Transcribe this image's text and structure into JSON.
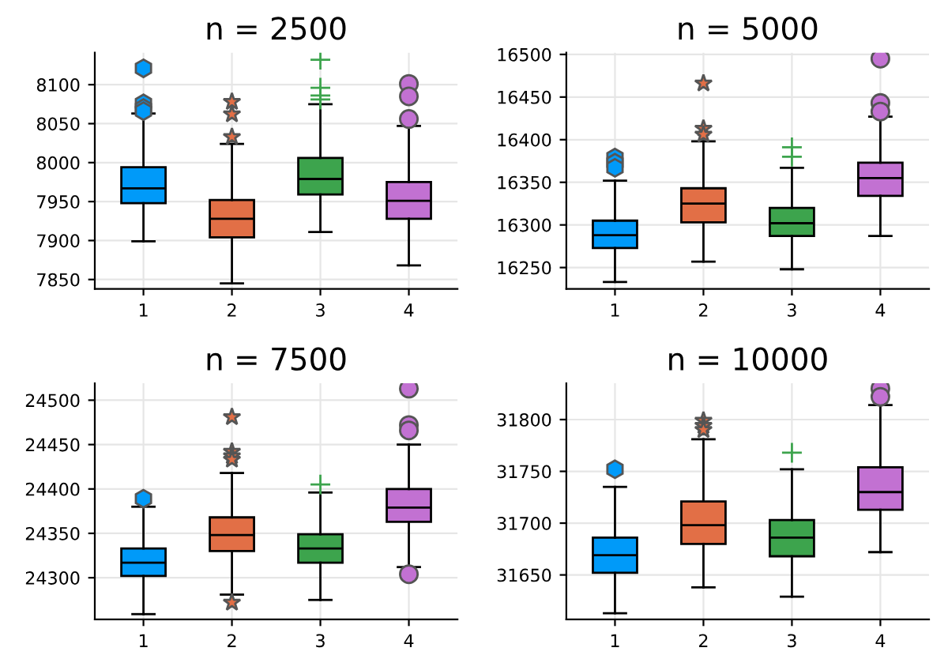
{
  "chart_data": [
    {
      "type": "box",
      "title": "n = 2500",
      "categories": [
        "1",
        "2",
        "3",
        "4"
      ],
      "ylim": [
        7838,
        8141
      ],
      "yticks": [
        7850,
        7900,
        7950,
        8000,
        8050,
        8100
      ],
      "grid": true,
      "series": [
        {
          "color": "#009af9",
          "marker": "hexagon",
          "x": [
            "1"
          ],
          "boxes": [
            {
              "low": 7899,
              "q1": 7948,
              "median": 7967,
              "q3": 7994,
              "high": 8063,
              "outliers": [
                8121,
                8076,
                8070,
                8066
              ]
            }
          ]
        },
        {
          "color": "#e26f46",
          "marker": "star",
          "x": [
            "2"
          ],
          "boxes": [
            {
              "low": 7845,
              "q1": 7904,
              "median": 7928,
              "q3": 7952,
              "high": 8024,
              "outliers": [
                8078,
                8062,
                8033
              ]
            }
          ]
        },
        {
          "color": "#3da44d",
          "marker": "cross",
          "x": [
            "3"
          ],
          "boxes": [
            {
              "low": 7911,
              "q1": 7959,
              "median": 7979,
              "q3": 8006,
              "high": 8075,
              "outliers": [
                8132,
                8096,
                8086,
                8081
              ]
            }
          ]
        },
        {
          "color": "#c271d2",
          "marker": "circle",
          "x": [
            "4"
          ],
          "boxes": [
            {
              "low": 7868,
              "q1": 7928,
              "median": 7951,
              "q3": 7975,
              "high": 8047,
              "outliers": [
                8101,
                8085,
                8056
              ]
            }
          ]
        }
      ]
    },
    {
      "type": "box",
      "title": "n = 5000",
      "categories": [
        "1",
        "2",
        "3",
        "4"
      ],
      "ylim": [
        16225,
        16502
      ],
      "yticks": [
        16250,
        16300,
        16350,
        16400,
        16450,
        16500
      ],
      "grid": true,
      "series": [
        {
          "color": "#009af9",
          "marker": "hexagon",
          "x": [
            "1"
          ],
          "boxes": [
            {
              "low": 16233,
              "q1": 16273,
              "median": 16288,
              "q3": 16305,
              "high": 16352,
              "outliers": [
                16379,
                16373,
                16367
              ]
            }
          ]
        },
        {
          "color": "#e26f46",
          "marker": "star",
          "x": [
            "2"
          ],
          "boxes": [
            {
              "low": 16257,
              "q1": 16303,
              "median": 16325,
              "q3": 16343,
              "high": 16398,
              "outliers": [
                16466,
                16413,
                16406
              ]
            }
          ]
        },
        {
          "color": "#3da44d",
          "marker": "cross",
          "x": [
            "3"
          ],
          "boxes": [
            {
              "low": 16248,
              "q1": 16287,
              "median": 16302,
              "q3": 16320,
              "high": 16367,
              "outliers": [
                16391,
                16380
              ]
            }
          ]
        },
        {
          "color": "#c271d2",
          "marker": "circle",
          "x": [
            "4"
          ],
          "boxes": [
            {
              "low": 16287,
              "q1": 16334,
              "median": 16355,
              "q3": 16373,
              "high": 16427,
              "outliers": [
                16495,
                16443,
                16433
              ]
            }
          ]
        }
      ]
    },
    {
      "type": "box",
      "title": "n = 7500",
      "categories": [
        "1",
        "2",
        "3",
        "4"
      ],
      "ylim": [
        24253,
        24519
      ],
      "yticks": [
        24300,
        24350,
        24400,
        24450,
        24500
      ],
      "grid": true,
      "series": [
        {
          "color": "#009af9",
          "marker": "hexagon",
          "x": [
            "1"
          ],
          "boxes": [
            {
              "low": 24259,
              "q1": 24302,
              "median": 24317,
              "q3": 24333,
              "high": 24380,
              "outliers": [
                24389
              ]
            }
          ]
        },
        {
          "color": "#e26f46",
          "marker": "star",
          "x": [
            "2"
          ],
          "boxes": [
            {
              "low": 24281,
              "q1": 24330,
              "median": 24348,
              "q3": 24368,
              "high": 24418,
              "outliers": [
                24481,
                24442,
                24437,
                24433,
                24272
              ]
            }
          ]
        },
        {
          "color": "#3da44d",
          "marker": "cross",
          "x": [
            "3"
          ],
          "boxes": [
            {
              "low": 24275,
              "q1": 24317,
              "median": 24333,
              "q3": 24349,
              "high": 24396,
              "outliers": [
                24405
              ]
            }
          ]
        },
        {
          "color": "#c271d2",
          "marker": "circle",
          "x": [
            "4"
          ],
          "boxes": [
            {
              "low": 24312,
              "q1": 24363,
              "median": 24379,
              "q3": 24400,
              "high": 24450,
              "outliers": [
                24513,
                24472,
                24466,
                24304
              ]
            }
          ]
        }
      ]
    },
    {
      "type": "box",
      "title": "n = 10000",
      "categories": [
        "1",
        "2",
        "3",
        "4"
      ],
      "ylim": [
        31607,
        31835
      ],
      "yticks": [
        31650,
        31700,
        31750,
        31800
      ],
      "grid": true,
      "series": [
        {
          "color": "#009af9",
          "marker": "hexagon",
          "x": [
            "1"
          ],
          "boxes": [
            {
              "low": 31613,
              "q1": 31652,
              "median": 31669,
              "q3": 31686,
              "high": 31735,
              "outliers": [
                31752
              ]
            }
          ]
        },
        {
          "color": "#e26f46",
          "marker": "star",
          "x": [
            "2"
          ],
          "boxes": [
            {
              "low": 31638,
              "q1": 31680,
              "median": 31698,
              "q3": 31721,
              "high": 31781,
              "outliers": [
                31799,
                31794,
                31790
              ]
            }
          ]
        },
        {
          "color": "#3da44d",
          "marker": "cross",
          "x": [
            "3"
          ],
          "boxes": [
            {
              "low": 31629,
              "q1": 31668,
              "median": 31686,
              "q3": 31703,
              "high": 31752,
              "outliers": [
                31768
              ]
            }
          ]
        },
        {
          "color": "#c271d2",
          "marker": "circle",
          "x": [
            "4"
          ],
          "boxes": [
            {
              "low": 31672,
              "q1": 31713,
              "median": 31730,
              "q3": 31754,
              "high": 31814,
              "outliers": [
                31830,
                31822
              ]
            }
          ]
        }
      ]
    }
  ]
}
